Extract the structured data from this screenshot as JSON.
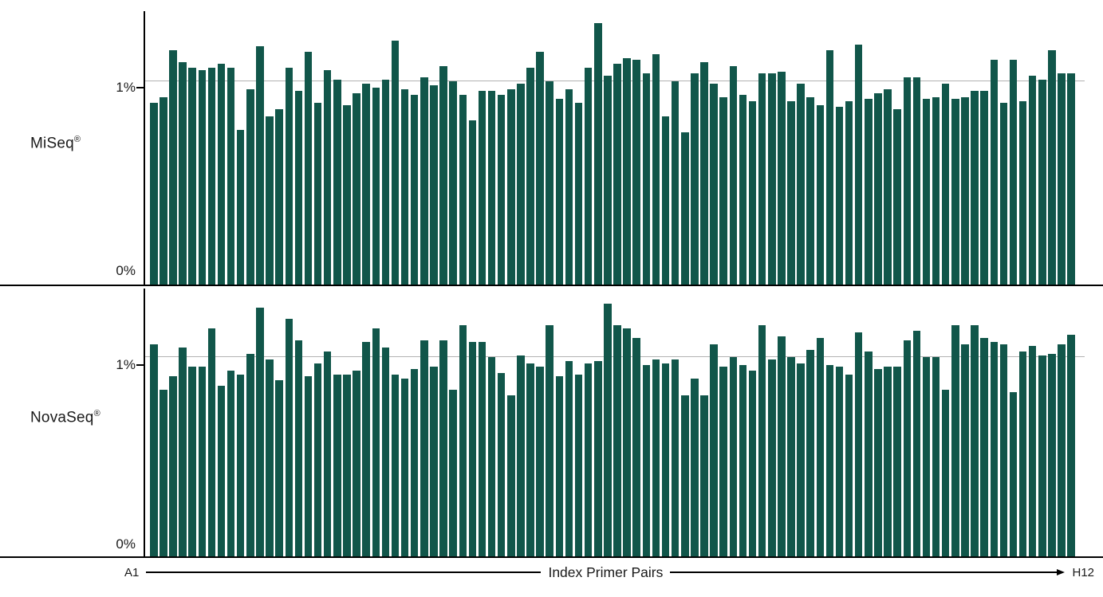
{
  "chart_data": [
    {
      "type": "bar",
      "panel_label": "MiSeq",
      "reg_mark": "®",
      "ylabel_tick_1": "1%",
      "ylabel_tick_0": "0%",
      "ylim": [
        0,
        1.4
      ],
      "gridline_value": 1.04,
      "bar_color": "#11564a",
      "n_bars": 96,
      "values": [
        0.93,
        0.96,
        1.2,
        1.14,
        1.11,
        1.1,
        1.11,
        1.13,
        1.11,
        0.79,
        1.0,
        1.22,
        0.86,
        0.9,
        1.11,
        0.99,
        1.19,
        0.93,
        1.1,
        1.05,
        0.92,
        0.98,
        1.03,
        1.01,
        1.05,
        1.25,
        1.0,
        0.97,
        1.06,
        1.02,
        1.12,
        1.04,
        0.97,
        0.84,
        0.99,
        0.99,
        0.97,
        1.0,
        1.03,
        1.11,
        1.19,
        1.04,
        0.95,
        1.0,
        0.93,
        1.11,
        1.34,
        1.07,
        1.13,
        1.16,
        1.15,
        1.08,
        1.18,
        0.86,
        1.04,
        0.78,
        1.08,
        1.14,
        1.03,
        0.96,
        1.12,
        0.97,
        0.94,
        1.08,
        1.08,
        1.09,
        0.94,
        1.03,
        0.96,
        0.92,
        1.2,
        0.91,
        0.94,
        1.23,
        0.95,
        0.98,
        1.0,
        0.9,
        1.06,
        1.06,
        0.95,
        0.96,
        1.03,
        0.95,
        0.96,
        0.99,
        0.99,
        1.15,
        0.93,
        1.15,
        0.94,
        1.07,
        1.05,
        1.2,
        1.08,
        1.08
      ]
    },
    {
      "type": "bar",
      "panel_label": "NovaSeq",
      "reg_mark": "®",
      "ylabel_tick_1": "1%",
      "ylabel_tick_0": "0%",
      "ylim": [
        0,
        1.4
      ],
      "gridline_value": 1.04,
      "bar_color": "#11564a",
      "n_bars": 96,
      "values": [
        1.11,
        0.87,
        0.94,
        1.09,
        0.99,
        0.99,
        1.19,
        0.89,
        0.97,
        0.95,
        1.06,
        1.3,
        1.03,
        0.92,
        1.24,
        1.13,
        0.94,
        1.01,
        1.07,
        0.95,
        0.95,
        0.97,
        1.12,
        1.19,
        1.09,
        0.95,
        0.93,
        0.98,
        1.13,
        0.99,
        1.13,
        0.87,
        1.21,
        1.12,
        1.12,
        1.04,
        0.96,
        0.84,
        1.05,
        1.01,
        0.99,
        1.21,
        0.94,
        1.02,
        0.95,
        1.01,
        1.02,
        1.32,
        1.21,
        1.19,
        1.14,
        1.0,
        1.03,
        1.01,
        1.03,
        0.84,
        0.93,
        0.84,
        1.11,
        0.99,
        1.04,
        1.0,
        0.97,
        1.21,
        1.03,
        1.15,
        1.04,
        1.01,
        1.08,
        1.14,
        1.0,
        0.99,
        0.95,
        1.17,
        1.07,
        0.98,
        0.99,
        0.99,
        1.13,
        1.18,
        1.04,
        1.04,
        0.87,
        1.21,
        1.11,
        1.21,
        1.14,
        1.12,
        1.11,
        0.86,
        1.07,
        1.1,
        1.05,
        1.06,
        1.11,
        1.16
      ]
    }
  ],
  "x_axis": {
    "first_label": "A1",
    "last_label": "H12",
    "title": "Index Primer Pairs"
  }
}
